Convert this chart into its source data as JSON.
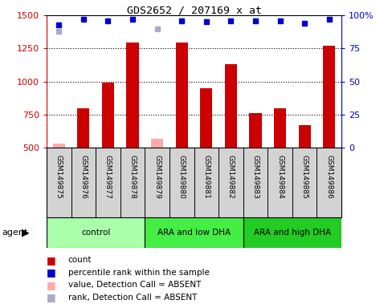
{
  "title": "GDS2652 / 207169_x_at",
  "samples": [
    "GSM149875",
    "GSM149876",
    "GSM149877",
    "GSM149878",
    "GSM149879",
    "GSM149880",
    "GSM149881",
    "GSM149882",
    "GSM149883",
    "GSM149884",
    "GSM149885",
    "GSM149886"
  ],
  "counts": [
    null,
    800,
    990,
    1295,
    null,
    1295,
    950,
    1130,
    760,
    800,
    670,
    1270
  ],
  "absent_values": [
    530,
    null,
    null,
    null,
    570,
    null,
    null,
    null,
    null,
    null,
    null,
    null
  ],
  "percentile_ranks": [
    93,
    97,
    96,
    97,
    null,
    96,
    95,
    96,
    96,
    96,
    94,
    97
  ],
  "absent_ranks": [
    88,
    null,
    null,
    null,
    90,
    null,
    null,
    null,
    null,
    null,
    null,
    null
  ],
  "groups": [
    {
      "label": "control",
      "start": 0,
      "end": 4,
      "color": "#aaffaa"
    },
    {
      "label": "ARA and low DHA",
      "start": 4,
      "end": 8,
      "color": "#44ee44"
    },
    {
      "label": "ARA and high DHA",
      "start": 8,
      "end": 12,
      "color": "#22cc22"
    }
  ],
  "ylim_left": [
    500,
    1500
  ],
  "ylim_right": [
    0,
    100
  ],
  "yticks_left": [
    500,
    750,
    1000,
    1250,
    1500
  ],
  "yticks_right": [
    0,
    25,
    50,
    75,
    100
  ],
  "bar_color": "#cc0000",
  "absent_bar_color": "#ffaaaa",
  "dot_color": "#0000cc",
  "absent_dot_color": "#aaaacc",
  "background_color": "#ffffff",
  "plot_bg_color": "#ffffff",
  "label_bg_color": "#d3d3d3",
  "grid_color": "#000000",
  "title_color": "#000000",
  "left_axis_color": "#cc0000",
  "right_axis_color": "#0000cc",
  "bar_width": 0.5,
  "dot_size": 5
}
